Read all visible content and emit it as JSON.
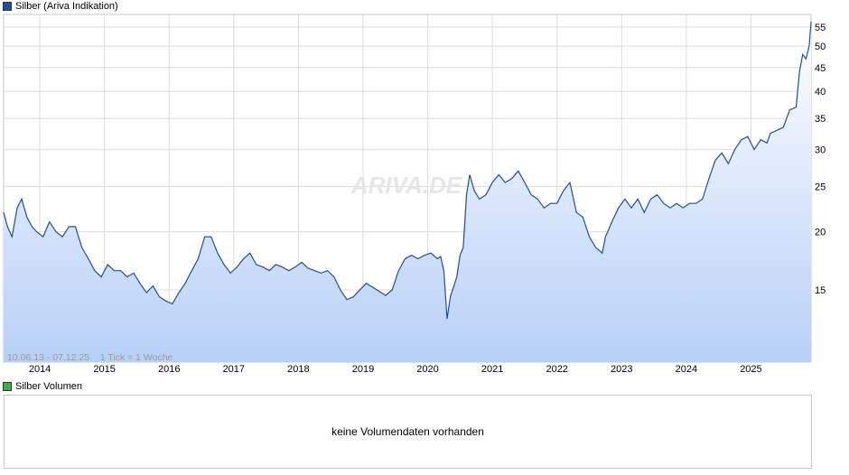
{
  "legend": {
    "price_label": "Silber (Ariva Indikation)",
    "price_color": "#1f4e9c",
    "volume_label": "Silber Volumen",
    "volume_color": "#3cb043"
  },
  "watermark": "ARIVA.DE",
  "range_info": "10.06.13 - 07.12.25    1 Tick = 1 Woche",
  "volume_message": "keine Volumendaten vorhanden",
  "colors": {
    "line": "#1f4e9c",
    "fill_top": "#ffffff",
    "fill_bottom": "#b8d0f7",
    "grid": "#dcdcdc"
  },
  "chart_data": {
    "type": "area",
    "title": "Silber (Ariva Indikation)",
    "scale": "log",
    "y_ticks": [
      15,
      20,
      25,
      30,
      35,
      40,
      45,
      50,
      55
    ],
    "y_tick_labels": [
      "15",
      "20",
      "25",
      "30",
      "35",
      "40",
      "45",
      "50",
      "55"
    ],
    "x_range": [
      2013.44,
      2025.93
    ],
    "ylim": [
      10.5,
      58.5
    ],
    "x_tick_labels": [
      "2014",
      "2015",
      "2016",
      "2017",
      "2018",
      "2019",
      "2020",
      "2021",
      "2022",
      "2023",
      "2024",
      "2025"
    ],
    "x_tick_positions": [
      2014,
      2015,
      2016,
      2017,
      2018,
      2019,
      2020,
      2021,
      2022,
      2023,
      2024,
      2025
    ],
    "grid": true,
    "series": [
      {
        "values_x": [
          2013.44,
          2013.5,
          2013.57,
          2013.65,
          2013.72,
          2013.8,
          2013.88,
          2013.95,
          2014.05,
          2014.15,
          2014.25,
          2014.35,
          2014.45,
          2014.55,
          2014.65,
          2014.75,
          2014.85,
          2014.95,
          2015.05,
          2015.15,
          2015.25,
          2015.35,
          2015.45,
          2015.55,
          2015.65,
          2015.75,
          2015.85,
          2015.95,
          2016.05,
          2016.15,
          2016.25,
          2016.35,
          2016.45,
          2016.55,
          2016.65,
          2016.75,
          2016.85,
          2016.95,
          2017.05,
          2017.15,
          2017.25,
          2017.35,
          2017.45,
          2017.55,
          2017.65,
          2017.75,
          2017.85,
          2017.95,
          2018.05,
          2018.15,
          2018.25,
          2018.35,
          2018.45,
          2018.55,
          2018.65,
          2018.75,
          2018.85,
          2018.95,
          2019.05,
          2019.15,
          2019.25,
          2019.35,
          2019.45,
          2019.55,
          2019.65,
          2019.75,
          2019.85,
          2019.95,
          2020.05,
          2020.15,
          2020.2,
          2020.25,
          2020.3,
          2020.35,
          2020.45,
          2020.5,
          2020.55,
          2020.6,
          2020.65,
          2020.72,
          2020.8,
          2020.9,
          2021.0,
          2021.1,
          2021.2,
          2021.3,
          2021.4,
          2021.5,
          2021.6,
          2021.7,
          2021.8,
          2021.9,
          2022.0,
          2022.1,
          2022.2,
          2022.3,
          2022.4,
          2022.5,
          2022.6,
          2022.7,
          2022.75,
          2022.85,
          2022.95,
          2023.05,
          2023.15,
          2023.25,
          2023.35,
          2023.45,
          2023.55,
          2023.65,
          2023.75,
          2023.85,
          2023.95,
          2024.05,
          2024.15,
          2024.25,
          2024.35,
          2024.45,
          2024.55,
          2024.65,
          2024.75,
          2024.85,
          2024.95,
          2025.05,
          2025.15,
          2025.25,
          2025.3,
          2025.4,
          2025.5,
          2025.6,
          2025.7,
          2025.75,
          2025.8,
          2025.85,
          2025.9,
          2025.93
        ],
        "values_y": [
          22.0,
          20.5,
          19.5,
          22.5,
          23.5,
          21.5,
          20.5,
          20.0,
          19.5,
          21.0,
          20.0,
          19.5,
          20.5,
          20.5,
          18.5,
          17.5,
          16.5,
          16.0,
          17.0,
          16.5,
          16.5,
          16.0,
          16.3,
          15.5,
          14.8,
          15.3,
          14.5,
          14.2,
          14.0,
          14.8,
          15.5,
          16.5,
          17.5,
          19.5,
          19.5,
          18.0,
          17.0,
          16.3,
          16.8,
          17.5,
          18.0,
          17.0,
          16.8,
          16.5,
          17.0,
          16.8,
          16.5,
          16.8,
          17.2,
          16.7,
          16.5,
          16.3,
          16.5,
          16.0,
          15.0,
          14.3,
          14.5,
          15.0,
          15.5,
          15.2,
          14.9,
          14.6,
          15.0,
          16.5,
          17.5,
          17.8,
          17.5,
          17.8,
          18.0,
          17.5,
          17.7,
          16.5,
          13.0,
          14.5,
          16.0,
          17.8,
          18.5,
          24.0,
          26.5,
          24.5,
          23.5,
          24.0,
          25.5,
          26.5,
          25.5,
          26.0,
          27.0,
          25.5,
          24.0,
          23.5,
          22.5,
          23.0,
          23.0,
          24.5,
          25.5,
          22.0,
          21.5,
          19.5,
          18.5,
          18.0,
          19.5,
          21.0,
          22.5,
          23.5,
          22.5,
          23.5,
          22.0,
          23.5,
          24.0,
          23.0,
          22.5,
          23.0,
          22.5,
          23.0,
          23.0,
          23.5,
          26.0,
          28.5,
          29.5,
          28.0,
          30.0,
          31.5,
          32.0,
          30.0,
          31.5,
          31.0,
          32.5,
          33.0,
          33.5,
          36.5,
          37.0,
          44.0,
          48.0,
          47.0,
          50.0,
          56.5
        ]
      }
    ]
  }
}
